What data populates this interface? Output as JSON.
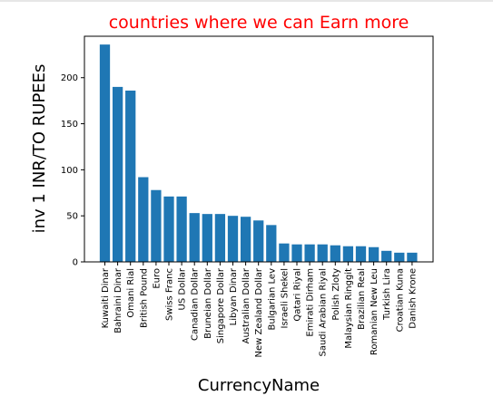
{
  "chart_data": {
    "type": "bar",
    "title": "countries where we can Earn more",
    "xlabel": "CurrencyName",
    "ylabel": "inv 1 INR/TO RUPEEs",
    "ylim": [
      0,
      245
    ],
    "yticks": [
      0,
      50,
      100,
      150,
      200
    ],
    "bar_color": "#1f77b4",
    "title_color": "#ff0000",
    "categories": [
      "Kuwaiti Dinar",
      "Bahraini Dinar",
      "Omani Rial",
      "British Pound",
      "Euro",
      "Swiss Franc",
      "US Dollar",
      "Canadian Dollar",
      "Bruneian Dollar",
      "Singapore Dollar",
      "Libyan Dinar",
      "Australian Dollar",
      "New Zealand Dollar",
      "Bulgarian Lev",
      "Israeli Shekel",
      "Qatari Riyal",
      "Emirati Dirham",
      "Saudi Arabian Riyal",
      "Polish Zloty",
      "Malaysian Ringgit",
      "Brazilian Real",
      "Romanian New Leu",
      "Turkish Lira",
      "Croatian Kuna",
      "Danish Krone"
    ],
    "values": [
      236,
      190,
      186,
      92,
      78,
      71,
      71,
      53,
      52,
      52,
      50,
      49,
      45,
      40,
      20,
      19,
      19,
      19,
      18,
      17,
      17,
      16,
      12,
      10,
      10
    ]
  }
}
